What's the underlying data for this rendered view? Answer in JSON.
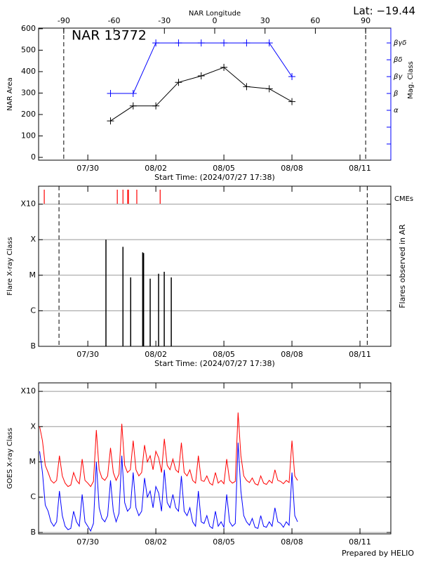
{
  "title_annotation": "Lat: −19.44",
  "footer": "Prepared by HELIO",
  "chart_data": [
    {
      "type": "line",
      "title": "NAR 13772",
      "x_label": "Start Time: (2024/07/27 17:38)",
      "x2_label": "NAR Longitude",
      "y_label": "NAR Area",
      "y2_label": "Mag. Class",
      "marker": "plus",
      "xlim": [
        27.83,
        43.36
      ],
      "xticks": [
        {
          "value": 30,
          "label": "07/30"
        },
        {
          "value": 33,
          "label": "08/02"
        },
        {
          "value": 36,
          "label": "08/05"
        },
        {
          "value": 39,
          "label": "08/08"
        },
        {
          "value": 42,
          "label": "08/11"
        }
      ],
      "x2lim": [
        -105,
        105
      ],
      "x2ticks": [
        -90,
        -60,
        -30,
        0,
        30,
        60,
        90
      ],
      "limb_longitudes": [
        -90,
        90
      ],
      "ylim": [
        -13,
        603
      ],
      "yticks": [
        0,
        100,
        200,
        300,
        400,
        500,
        600
      ],
      "y2lim": [
        -1.96,
        5.88
      ],
      "y2color": "#0000ff",
      "y2ticks": [
        {
          "value": 1,
          "label": "α"
        },
        {
          "value": 2,
          "label": "β"
        },
        {
          "value": 3,
          "label": "βγ"
        },
        {
          "value": 4,
          "label": "βδ"
        },
        {
          "value": 5,
          "label": "βγδ"
        }
      ],
      "y2minorticks": [
        -1,
        0
      ],
      "x": [
        31,
        32,
        33,
        34,
        35,
        36,
        37,
        38,
        39
      ],
      "series": [
        {
          "color": "#000000",
          "values": [
            170,
            240,
            240,
            350,
            380,
            420,
            330,
            320,
            260
          ]
        },
        {
          "color": "#0000ff",
          "axis": "y2",
          "values": [
            2,
            2,
            5,
            5,
            5,
            5,
            5,
            5,
            3
          ]
        }
      ]
    },
    {
      "type": "flares",
      "x_label": "Start Time: (2024/07/27 17:38)",
      "y_label": "Flare X-ray Class",
      "y2_label": "Flares observed in AR",
      "xlim": [
        27.83,
        43.36
      ],
      "xticks": [
        {
          "value": 30,
          "label": "07/30"
        },
        {
          "value": 33,
          "label": "08/02"
        },
        {
          "value": 36,
          "label": "08/05"
        },
        {
          "value": 39,
          "label": "08/08"
        },
        {
          "value": 42,
          "label": "08/11"
        }
      ],
      "limb_times": [
        28.73,
        42.32
      ],
      "log_y": true,
      "grid": true,
      "ylim": [
        1e-07,
        0.0032
      ],
      "yticks": [
        {
          "value": 1e-07,
          "label": "B"
        },
        {
          "value": 1e-06,
          "label": "C"
        },
        {
          "value": 1e-05,
          "label": "M"
        },
        {
          "value": 0.0001,
          "label": "X"
        },
        {
          "value": 0.001,
          "label": "X10"
        }
      ],
      "flares": {
        "color": "#000000",
        "x": [
          30.8,
          31.55,
          31.89,
          32.42,
          32.46,
          32.75,
          33.12,
          33.37,
          33.68
        ],
        "values": [
          0.0001,
          6.3e-05,
          8.7e-06,
          4.4e-05,
          4.2e-05,
          8e-06,
          1.1e-05,
          1.25e-05,
          8.7e-06
        ]
      },
      "cmes": {
        "name": "CMEs",
        "color": "#ff0000",
        "x": [
          28.08,
          31.3,
          31.55,
          31.76,
          31.79,
          32.16,
          33.19
        ]
      }
    },
    {
      "type": "line",
      "y_label": "GOES X-ray Class",
      "xlim": [
        27.83,
        43.36
      ],
      "xticks": [
        {
          "value": 30,
          "label": "07/30"
        },
        {
          "value": 33,
          "label": "08/02"
        },
        {
          "value": 36,
          "label": "08/05"
        },
        {
          "value": 39,
          "label": "08/08"
        },
        {
          "value": 42,
          "label": "08/11"
        }
      ],
      "log_y": true,
      "grid": true,
      "ylim": [
        9.1e-08,
        0.00174
      ],
      "yticks": [
        {
          "value": 1e-07,
          "label": "B"
        },
        {
          "value": 1e-06,
          "label": "C"
        },
        {
          "value": 1e-05,
          "label": "M"
        },
        {
          "value": 0.0001,
          "label": "X"
        },
        {
          "value": 0.001,
          "label": "X10"
        }
      ],
      "x": [
        27.875,
        28,
        28.125,
        28.25,
        28.375,
        28.5,
        28.625,
        28.75,
        28.875,
        29,
        29.125,
        29.25,
        29.375,
        29.5,
        29.625,
        29.75,
        29.875,
        30,
        30.125,
        30.25,
        30.375,
        30.5,
        30.625,
        30.75,
        30.875,
        31,
        31.125,
        31.25,
        31.375,
        31.5,
        31.625,
        31.75,
        31.875,
        32,
        32.125,
        32.25,
        32.375,
        32.5,
        32.625,
        32.75,
        32.875,
        33,
        33.125,
        33.25,
        33.375,
        33.5,
        33.625,
        33.75,
        33.875,
        34,
        34.125,
        34.25,
        34.375,
        34.5,
        34.625,
        34.75,
        34.875,
        35,
        35.125,
        35.25,
        35.375,
        35.5,
        35.625,
        35.75,
        35.875,
        36,
        36.125,
        36.25,
        36.375,
        36.5,
        36.625,
        36.75,
        36.875,
        37,
        37.125,
        37.25,
        37.375,
        37.5,
        37.625,
        37.75,
        37.875,
        38,
        38.125,
        38.25,
        38.375,
        38.5,
        38.625,
        38.75,
        38.875,
        39,
        39.125,
        39.25
      ],
      "series": [
        {
          "color": "#ff0000",
          "values": [
            0.0001,
            4e-05,
            8e-06,
            5e-06,
            3e-06,
            2.5e-06,
            3e-06,
            1.5e-05,
            4e-06,
            2.5e-06,
            2e-06,
            2.2e-06,
            5e-06,
            3e-06,
            2.4e-06,
            1.2e-05,
            3e-06,
            2.5e-06,
            2e-06,
            2.8e-06,
            8e-05,
            6e-06,
            3.5e-06,
            3e-06,
            4e-06,
            2.5e-05,
            5e-06,
            3e-06,
            4.5e-06,
            0.00012,
            8e-06,
            5e-06,
            6e-06,
            4e-05,
            6e-06,
            4e-06,
            5e-06,
            3e-05,
            1e-05,
            1.5e-05,
            6e-06,
            2e-05,
            1.3e-05,
            5e-06,
            4.5e-05,
            8e-06,
            6e-06,
            1.2e-05,
            6e-06,
            5e-06,
            3.5e-05,
            5e-06,
            4e-06,
            6e-06,
            3e-06,
            2.5e-06,
            1.5e-05,
            3e-06,
            2.8e-06,
            4e-06,
            2.5e-06,
            2.2e-06,
            5e-06,
            2.5e-06,
            3e-06,
            2.4e-06,
            1.2e-05,
            3e-06,
            2.5e-06,
            2.8e-06,
            0.00025,
            1.5e-05,
            4e-06,
            3e-06,
            2.6e-06,
            3.5e-06,
            2.4e-06,
            2.2e-06,
            4e-06,
            2.5e-06,
            2.3e-06,
            3e-06,
            2.5e-06,
            6e-06,
            3e-06,
            2.8e-06,
            2.4e-06,
            3e-06,
            2.6e-06,
            4e-05,
            4e-06,
            3e-06
          ]
        },
        {
          "color": "#0000ff",
          "values": [
            2e-05,
            5e-06,
            6e-07,
            4e-07,
            2e-07,
            1.5e-07,
            2e-07,
            1.5e-06,
            3e-07,
            1.5e-07,
            1.2e-07,
            1.3e-07,
            4e-07,
            2e-07,
            1.5e-07,
            1.2e-06,
            2e-07,
            1.5e-07,
            1.1e-07,
            1.8e-07,
            1e-05,
            5e-07,
            2.5e-07,
            2e-07,
            3e-07,
            3e-06,
            4e-07,
            2e-07,
            3.5e-07,
            1.5e-05,
            7e-07,
            4e-07,
            5e-07,
            5e-06,
            5e-07,
            3e-07,
            4e-07,
            3.5e-06,
            1e-06,
            1.5e-06,
            5e-07,
            2e-06,
            1.3e-06,
            4e-07,
            6e-06,
            7e-07,
            5e-07,
            1.2e-06,
            5e-07,
            4e-07,
            4e-06,
            4e-07,
            3e-07,
            5e-07,
            2e-07,
            1.5e-07,
            1.5e-06,
            2e-07,
            1.8e-07,
            3e-07,
            1.5e-07,
            1.3e-07,
            4e-07,
            1.5e-07,
            2e-07,
            1.4e-07,
            1.2e-06,
            2e-07,
            1.5e-07,
            1.8e-07,
            3.5e-05,
            1.5e-06,
            3e-07,
            2e-07,
            1.6e-07,
            2.5e-07,
            1.4e-07,
            1.3e-07,
            3e-07,
            1.5e-07,
            1.4e-07,
            2e-07,
            1.5e-07,
            5e-07,
            2e-07,
            1.8e-07,
            1.4e-07,
            2e-07,
            1.6e-07,
            5e-06,
            3e-07,
            2e-07
          ]
        }
      ]
    }
  ]
}
